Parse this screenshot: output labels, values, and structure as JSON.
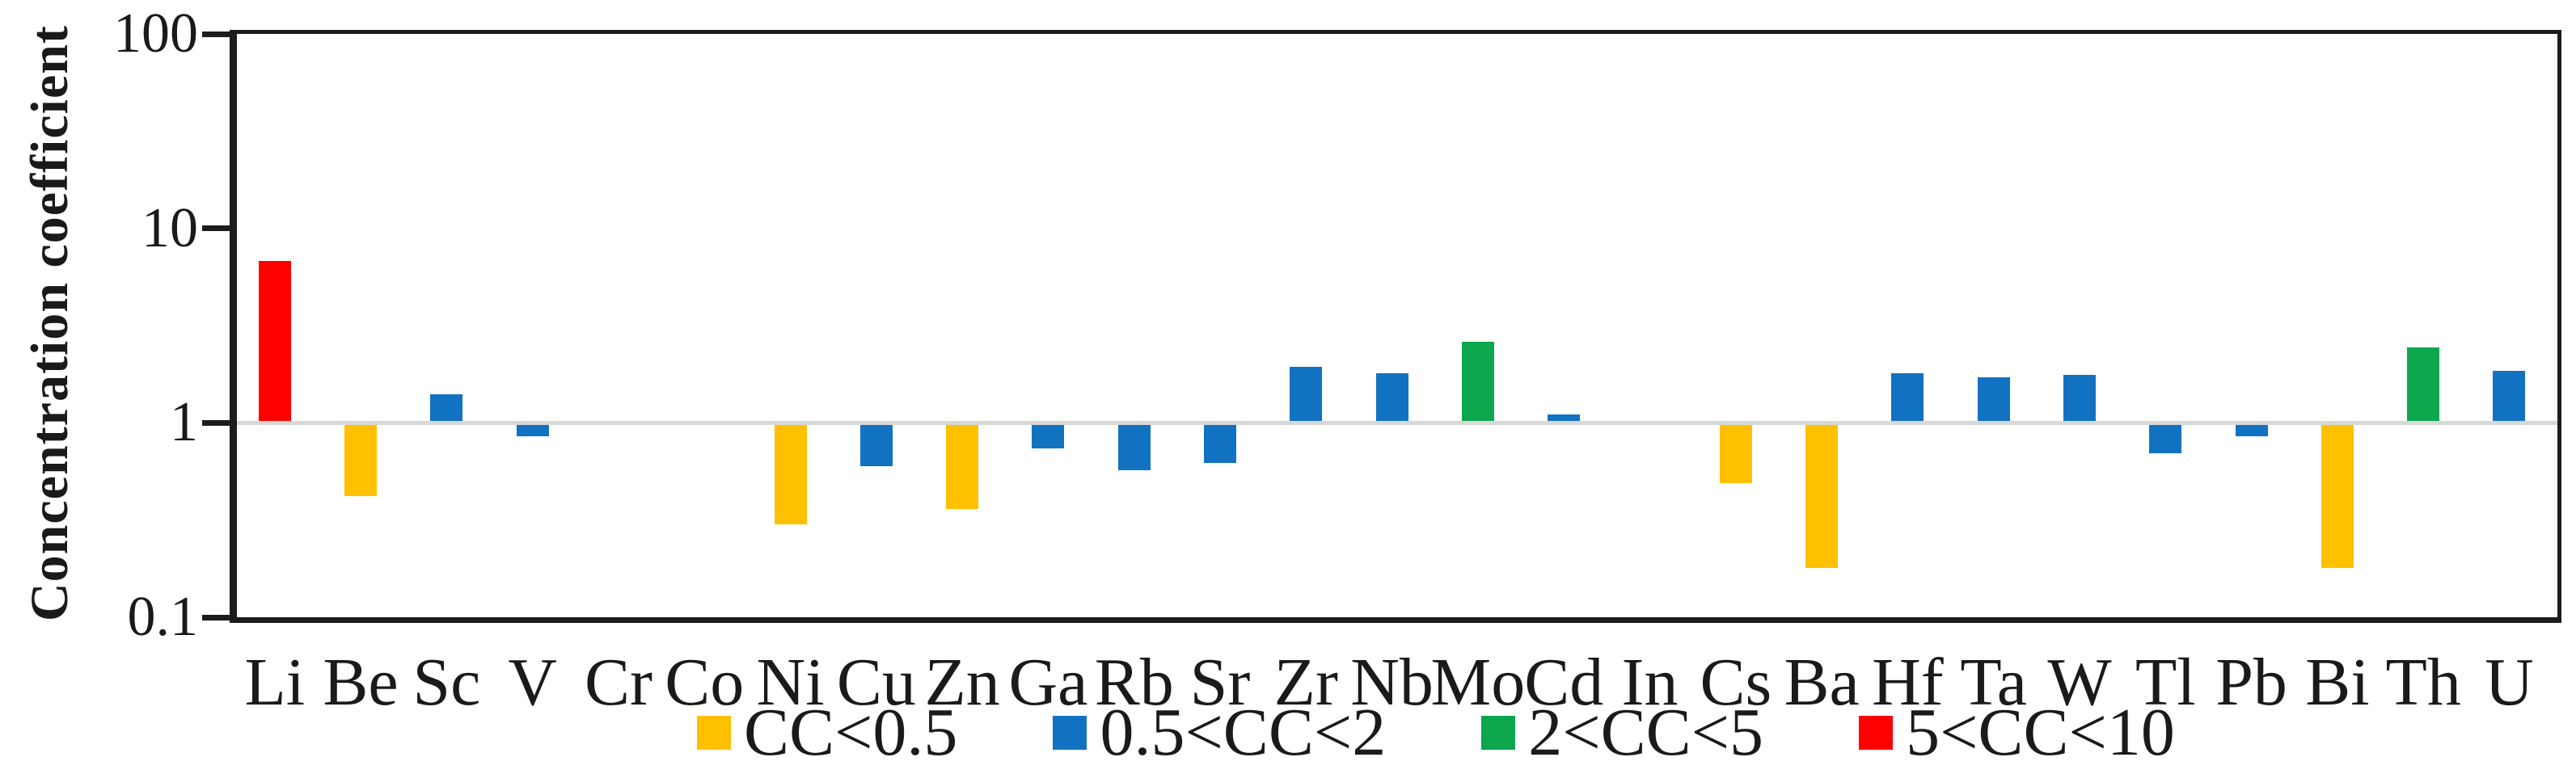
{
  "chart_data": {
    "type": "bar",
    "title": "",
    "ylabel": "Concentration coefficient",
    "xlabel": "",
    "yscale": "log",
    "ylim": [
      0.1,
      100
    ],
    "baseline": 1,
    "grid": "baseline-only",
    "legend_position": "bottom",
    "yticks": [
      {
        "label": "100",
        "value": 100
      },
      {
        "label": "10",
        "value": 10
      },
      {
        "label": "1",
        "value": 1
      },
      {
        "label": "0.1",
        "value": 0.1
      }
    ],
    "categories": [
      "Li",
      "Be",
      "Sc",
      "V",
      "Cr",
      "Co",
      "Ni",
      "Cu",
      "Zn",
      "Ga",
      "Rb",
      "Sr",
      "Zr",
      "Nb",
      "Mo",
      "Cd",
      "In",
      "Cs",
      "Ba",
      "Hf",
      "Ta",
      "W",
      "Tl",
      "Pb",
      "Bi",
      "Th",
      "U"
    ],
    "values": [
      6.8,
      0.42,
      1.4,
      0.85,
      null,
      null,
      0.3,
      0.6,
      0.36,
      0.74,
      0.57,
      0.62,
      1.95,
      1.8,
      2.6,
      1.1,
      null,
      0.49,
      0.18,
      1.8,
      1.72,
      1.77,
      0.7,
      0.85,
      0.18,
      2.45,
      1.85
    ],
    "classes": [
      "5<CC<10",
      "CC<0.5",
      "0.5<CC<2",
      "0.5<CC<2",
      null,
      null,
      "CC<0.5",
      "0.5<CC<2",
      "CC<0.5",
      "0.5<CC<2",
      "0.5<CC<2",
      "0.5<CC<2",
      "0.5<CC<2",
      "0.5<CC<2",
      "2<CC<5",
      "0.5<CC<2",
      null,
      "CC<0.5",
      "CC<0.5",
      "0.5<CC<2",
      "0.5<CC<2",
      "0.5<CC<2",
      "0.5<CC<2",
      "0.5<CC<2",
      "CC<0.5",
      "2<CC<5",
      "0.5<CC<2"
    ],
    "legend": [
      {
        "label": "CC<0.5",
        "color": "#FFC000"
      },
      {
        "label": "0.5<CC<2",
        "color": "#1272C2"
      },
      {
        "label": "2<CC<5",
        "color": "#0CA64C"
      },
      {
        "label": "5<CC<10",
        "color": "#FF0000"
      }
    ]
  },
  "colors": {
    "axis": "#1c1c1c",
    "gridline": "#d8d8d8",
    "text": "#1a1a1a",
    "background": "#ffffff"
  }
}
